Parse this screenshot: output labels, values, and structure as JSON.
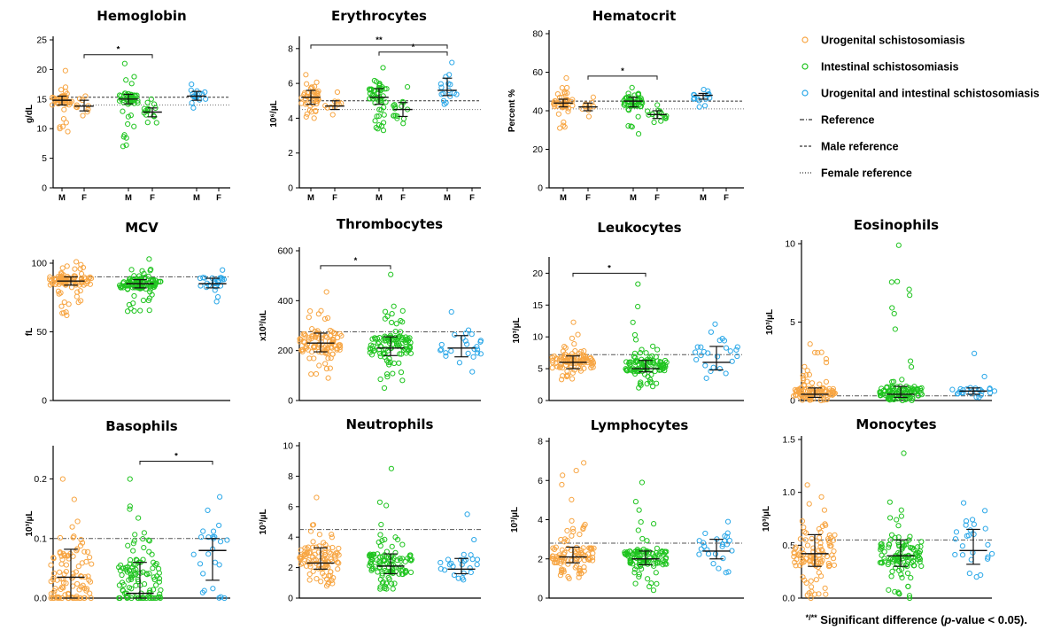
{
  "colors": {
    "urogenital": "#f7a542",
    "intestinal": "#1fc41f",
    "mixed": "#29a7e8",
    "axis": "#000000",
    "reference_line": "#555555"
  },
  "legend": {
    "entries": [
      {
        "label": "Urogenital schistosomiasis",
        "kind": "marker",
        "color": "#f7a542"
      },
      {
        "label": "Intestinal schistosomiasis",
        "kind": "marker",
        "color": "#1fc41f"
      },
      {
        "label": "Urogenital and intestinal schistosomiasis",
        "kind": "marker",
        "color": "#29a7e8"
      },
      {
        "label": "Reference",
        "kind": "line",
        "style": "dashdot"
      },
      {
        "label": "Male reference",
        "kind": "line",
        "style": "dashed"
      },
      {
        "label": "Female reference",
        "kind": "line",
        "style": "dotted"
      }
    ]
  },
  "footnote": {
    "prefix": "*/**",
    "text": " Significant difference (",
    "italic": "p",
    "suffix": "-value < 0.05)."
  },
  "chart_data": [
    {
      "type": "scatter",
      "title": "Hemoglobin",
      "ylabel": "g/dL",
      "ylim": [
        0,
        25
      ],
      "yticks": [
        "0",
        "5",
        "10",
        "15",
        "20",
        "25"
      ],
      "ytick_values": [
        0,
        5,
        10,
        15,
        20,
        25
      ],
      "categories": [
        "M",
        "F",
        "M",
        "F",
        "M",
        "F"
      ],
      "groups": [
        {
          "category": "M",
          "series": "urogenital",
          "median": 14.8,
          "q1": 14.0,
          "q3": 15.5,
          "min": 9.5,
          "max": 19.8,
          "n": 45
        },
        {
          "category": "F",
          "series": "urogenital",
          "median": 13.8,
          "q1": 13.0,
          "q3": 14.8,
          "min": 12.2,
          "max": 15.5,
          "n": 10
        },
        {
          "category": "M",
          "series": "intestinal",
          "median": 15.0,
          "q1": 14.2,
          "q3": 15.8,
          "min": 7.0,
          "max": 21.0,
          "n": 50
        },
        {
          "category": "F",
          "series": "intestinal",
          "median": 12.8,
          "q1": 12.0,
          "q3": 13.5,
          "min": 11.0,
          "max": 15.0,
          "n": 16
        },
        {
          "category": "M",
          "series": "mixed",
          "median": 15.5,
          "q1": 14.8,
          "q3": 16.3,
          "min": 13.5,
          "max": 17.5,
          "n": 16
        }
      ],
      "references": {
        "male": 15.3,
        "female": 14.0
      },
      "significance": [
        {
          "label": "*",
          "from": 1,
          "to": 3,
          "y": 22.5
        }
      ]
    },
    {
      "type": "scatter",
      "title": "Erythrocytes",
      "ylabel": "10⁶/µL",
      "ylim": [
        0,
        8.5
      ],
      "yticks": [
        "0",
        "2",
        "4",
        "6",
        "8"
      ],
      "ytick_values": [
        0,
        2,
        4,
        6,
        8
      ],
      "categories": [
        "M",
        "F",
        "M",
        "F",
        "M",
        "F"
      ],
      "groups": [
        {
          "category": "M",
          "series": "urogenital",
          "median": 5.2,
          "q1": 4.8,
          "q3": 5.6,
          "min": 4.0,
          "max": 6.5,
          "n": 45
        },
        {
          "category": "F",
          "series": "urogenital",
          "median": 4.7,
          "q1": 4.5,
          "q3": 5.0,
          "min": 4.2,
          "max": 5.5,
          "n": 10
        },
        {
          "category": "M",
          "series": "intestinal",
          "median": 5.2,
          "q1": 4.8,
          "q3": 5.7,
          "min": 3.3,
          "max": 6.9,
          "n": 50
        },
        {
          "category": "F",
          "series": "intestinal",
          "median": 4.5,
          "q1": 4.1,
          "q3": 4.9,
          "min": 3.7,
          "max": 5.8,
          "n": 16
        },
        {
          "category": "M",
          "series": "mixed",
          "median": 5.6,
          "q1": 5.3,
          "q3": 6.3,
          "min": 4.8,
          "max": 7.2,
          "n": 16
        }
      ],
      "references": {
        "male": 5.0,
        "female": 4.5
      },
      "significance": [
        {
          "label": "**",
          "from": 0,
          "to": 4,
          "y": 8.2
        },
        {
          "label": "*",
          "from": 2,
          "to": 4,
          "y": 7.8
        }
      ]
    },
    {
      "type": "scatter",
      "title": "Hematocrit",
      "ylabel": "Percent %",
      "ylim": [
        0,
        80
      ],
      "yticks": [
        "0",
        "20",
        "40",
        "60",
        "80"
      ],
      "ytick_values": [
        0,
        20,
        40,
        60,
        80
      ],
      "categories": [
        "M",
        "F",
        "M",
        "F",
        "M",
        "F"
      ],
      "groups": [
        {
          "category": "M",
          "series": "urogenital",
          "median": 44,
          "q1": 42,
          "q3": 46,
          "min": 31,
          "max": 57,
          "n": 45
        },
        {
          "category": "F",
          "series": "urogenital",
          "median": 42,
          "q1": 40,
          "q3": 44,
          "min": 37,
          "max": 47,
          "n": 10
        },
        {
          "category": "M",
          "series": "intestinal",
          "median": 45,
          "q1": 42,
          "q3": 47,
          "min": 28,
          "max": 52,
          "n": 50
        },
        {
          "category": "F",
          "series": "intestinal",
          "median": 38,
          "q1": 36,
          "q3": 40,
          "min": 34,
          "max": 43,
          "n": 16
        },
        {
          "category": "M",
          "series": "mixed",
          "median": 48,
          "q1": 46,
          "q3": 49,
          "min": 42,
          "max": 51,
          "n": 16
        }
      ],
      "references": {
        "male": 45,
        "female": 41
      },
      "significance": [
        {
          "label": "*",
          "from": 1,
          "to": 3,
          "y": 58
        }
      ]
    },
    {
      "type": "scatter",
      "title": "MCV",
      "ylabel": "fL",
      "ylim": [
        0,
        100
      ],
      "yticks": [
        "0",
        "50",
        "100"
      ],
      "ytick_values": [
        0,
        50,
        100
      ],
      "categories": [],
      "groups": [
        {
          "series": "urogenital",
          "median": 87,
          "q1": 84,
          "q3": 90,
          "min": 62,
          "max": 101,
          "n": 100
        },
        {
          "series": "intestinal",
          "median": 85,
          "q1": 82,
          "q3": 88,
          "min": 65,
          "max": 103,
          "n": 110
        },
        {
          "series": "mixed",
          "median": 85,
          "q1": 82,
          "q3": 89,
          "min": 72,
          "max": 95,
          "n": 25
        }
      ],
      "references": {
        "reference": 90
      },
      "significance": []
    },
    {
      "type": "scatter",
      "title": "Thrombocytes",
      "ylabel": "x10³/uL",
      "ylim": [
        0,
        600
      ],
      "yticks": [
        "0",
        "200",
        "400",
        "600"
      ],
      "ytick_values": [
        0,
        200,
        400,
        600
      ],
      "categories": [],
      "groups": [
        {
          "series": "urogenital",
          "median": 230,
          "q1": 195,
          "q3": 270,
          "min": 90,
          "max": 435,
          "n": 100
        },
        {
          "series": "intestinal",
          "median": 210,
          "q1": 180,
          "q3": 255,
          "min": 50,
          "max": 505,
          "n": 110
        },
        {
          "series": "mixed",
          "median": 210,
          "q1": 175,
          "q3": 260,
          "min": 115,
          "max": 355,
          "n": 25
        }
      ],
      "references": {
        "reference": 275
      },
      "significance": [
        {
          "label": "*",
          "from": 0,
          "to": 1,
          "y": 540
        }
      ]
    },
    {
      "type": "scatter",
      "title": "Leukocytes",
      "ylabel": "10³/µL",
      "ylim": [
        0,
        22
      ],
      "yticks": [
        "0",
        "5",
        "10",
        "15",
        "20"
      ],
      "ytick_values": [
        0,
        5,
        10,
        15,
        20
      ],
      "categories": [],
      "groups": [
        {
          "series": "urogenital",
          "median": 6.0,
          "q1": 5.0,
          "q3": 7.0,
          "min": 3.3,
          "max": 12.3,
          "n": 100
        },
        {
          "series": "intestinal",
          "median": 5.0,
          "q1": 4.5,
          "q3": 6.3,
          "min": 2.0,
          "max": 18.3,
          "n": 110
        },
        {
          "series": "mixed",
          "median": 6.0,
          "q1": 4.8,
          "q3": 8.5,
          "min": 3.5,
          "max": 12.0,
          "n": 25
        }
      ],
      "references": {
        "reference": 7.2
      },
      "significance": [
        {
          "label": "*",
          "from": 0,
          "to": 1,
          "y": 20
        }
      ]
    },
    {
      "type": "scatter",
      "title": "Eosinophils",
      "ylabel": "10³/µL",
      "ylim": [
        0,
        10
      ],
      "yticks": [
        "0",
        "5",
        "10"
      ],
      "ytick_values": [
        0,
        5,
        10
      ],
      "categories": [],
      "groups": [
        {
          "series": "urogenital",
          "median": 0.4,
          "q1": 0.2,
          "q3": 0.8,
          "min": 0.0,
          "max": 3.6,
          "n": 100
        },
        {
          "series": "intestinal",
          "median": 0.4,
          "q1": 0.2,
          "q3": 0.9,
          "min": 0.0,
          "max": 9.9,
          "n": 110
        },
        {
          "series": "mixed",
          "median": 0.6,
          "q1": 0.4,
          "q3": 0.8,
          "min": 0.2,
          "max": 3.0,
          "n": 25
        }
      ],
      "references": {
        "reference": 0.3
      },
      "significance": []
    },
    {
      "type": "scatter",
      "title": "Basophils",
      "ylabel": "10³/µL",
      "ylim": [
        0,
        0.25
      ],
      "yticks": [
        "0.0",
        "0.1",
        "0.2"
      ],
      "ytick_values": [
        0,
        0.1,
        0.2
      ],
      "categories": [],
      "groups": [
        {
          "series": "urogenital",
          "median": 0.035,
          "q1": 0.0,
          "q3": 0.082,
          "min": 0.0,
          "max": 0.2,
          "n": 100
        },
        {
          "series": "intestinal",
          "median": 0.008,
          "q1": 0.0,
          "q3": 0.06,
          "min": 0.0,
          "max": 0.2,
          "n": 110
        },
        {
          "series": "mixed",
          "median": 0.08,
          "q1": 0.03,
          "q3": 0.1,
          "min": 0.0,
          "max": 0.17,
          "n": 25
        }
      ],
      "references": {
        "reference": 0.1
      },
      "significance": [
        {
          "label": "*",
          "from": 1,
          "to": 2,
          "y": 0.23
        }
      ]
    },
    {
      "type": "scatter",
      "title": "Neutrophils",
      "ylabel": "10³/µL",
      "ylim": [
        0,
        10
      ],
      "yticks": [
        "0",
        "2",
        "4",
        "6",
        "8",
        "10"
      ],
      "ytick_values": [
        0,
        2,
        4,
        6,
        8,
        10
      ],
      "categories": [],
      "groups": [
        {
          "series": "urogenital",
          "median": 2.3,
          "q1": 1.9,
          "q3": 3.3,
          "min": 0.8,
          "max": 6.6,
          "n": 100
        },
        {
          "series": "intestinal",
          "median": 2.1,
          "q1": 1.6,
          "q3": 2.9,
          "min": 0.6,
          "max": 8.5,
          "n": 110
        },
        {
          "series": "mixed",
          "median": 1.9,
          "q1": 1.6,
          "q3": 2.6,
          "min": 1.2,
          "max": 5.5,
          "n": 25
        }
      ],
      "references": {
        "reference": 4.5
      },
      "significance": []
    },
    {
      "type": "scatter",
      "title": "Lymphocytes",
      "ylabel": "10³/µL",
      "ylim": [
        0,
        8
      ],
      "yticks": [
        "0",
        "2",
        "4",
        "6",
        "8"
      ],
      "ytick_values": [
        0,
        2,
        4,
        6,
        8
      ],
      "categories": [],
      "groups": [
        {
          "series": "urogenital",
          "median": 2.1,
          "q1": 1.8,
          "q3": 2.6,
          "min": 1.0,
          "max": 6.9,
          "n": 100
        },
        {
          "series": "intestinal",
          "median": 2.0,
          "q1": 1.7,
          "q3": 2.4,
          "min": 0.4,
          "max": 5.9,
          "n": 110
        },
        {
          "series": "mixed",
          "median": 2.4,
          "q1": 2.0,
          "q3": 3.0,
          "min": 1.3,
          "max": 3.9,
          "n": 25
        }
      ],
      "references": {
        "reference": 2.8
      },
      "significance": []
    },
    {
      "type": "scatter",
      "title": "Monocytes",
      "ylabel": "10³/µL",
      "ylim": [
        0,
        1.5
      ],
      "yticks": [
        "0.0",
        "0.5",
        "1.0",
        "1.5"
      ],
      "ytick_values": [
        0,
        0.5,
        1.0,
        1.5
      ],
      "categories": [],
      "groups": [
        {
          "series": "urogenital",
          "median": 0.42,
          "q1": 0.3,
          "q3": 0.6,
          "min": 0.0,
          "max": 1.07,
          "n": 100
        },
        {
          "series": "intestinal",
          "median": 0.4,
          "q1": 0.3,
          "q3": 0.55,
          "min": 0.0,
          "max": 1.37,
          "n": 110
        },
        {
          "series": "mixed",
          "median": 0.45,
          "q1": 0.32,
          "q3": 0.65,
          "min": 0.2,
          "max": 0.9,
          "n": 25
        }
      ],
      "references": {
        "reference": 0.55
      },
      "significance": []
    }
  ]
}
